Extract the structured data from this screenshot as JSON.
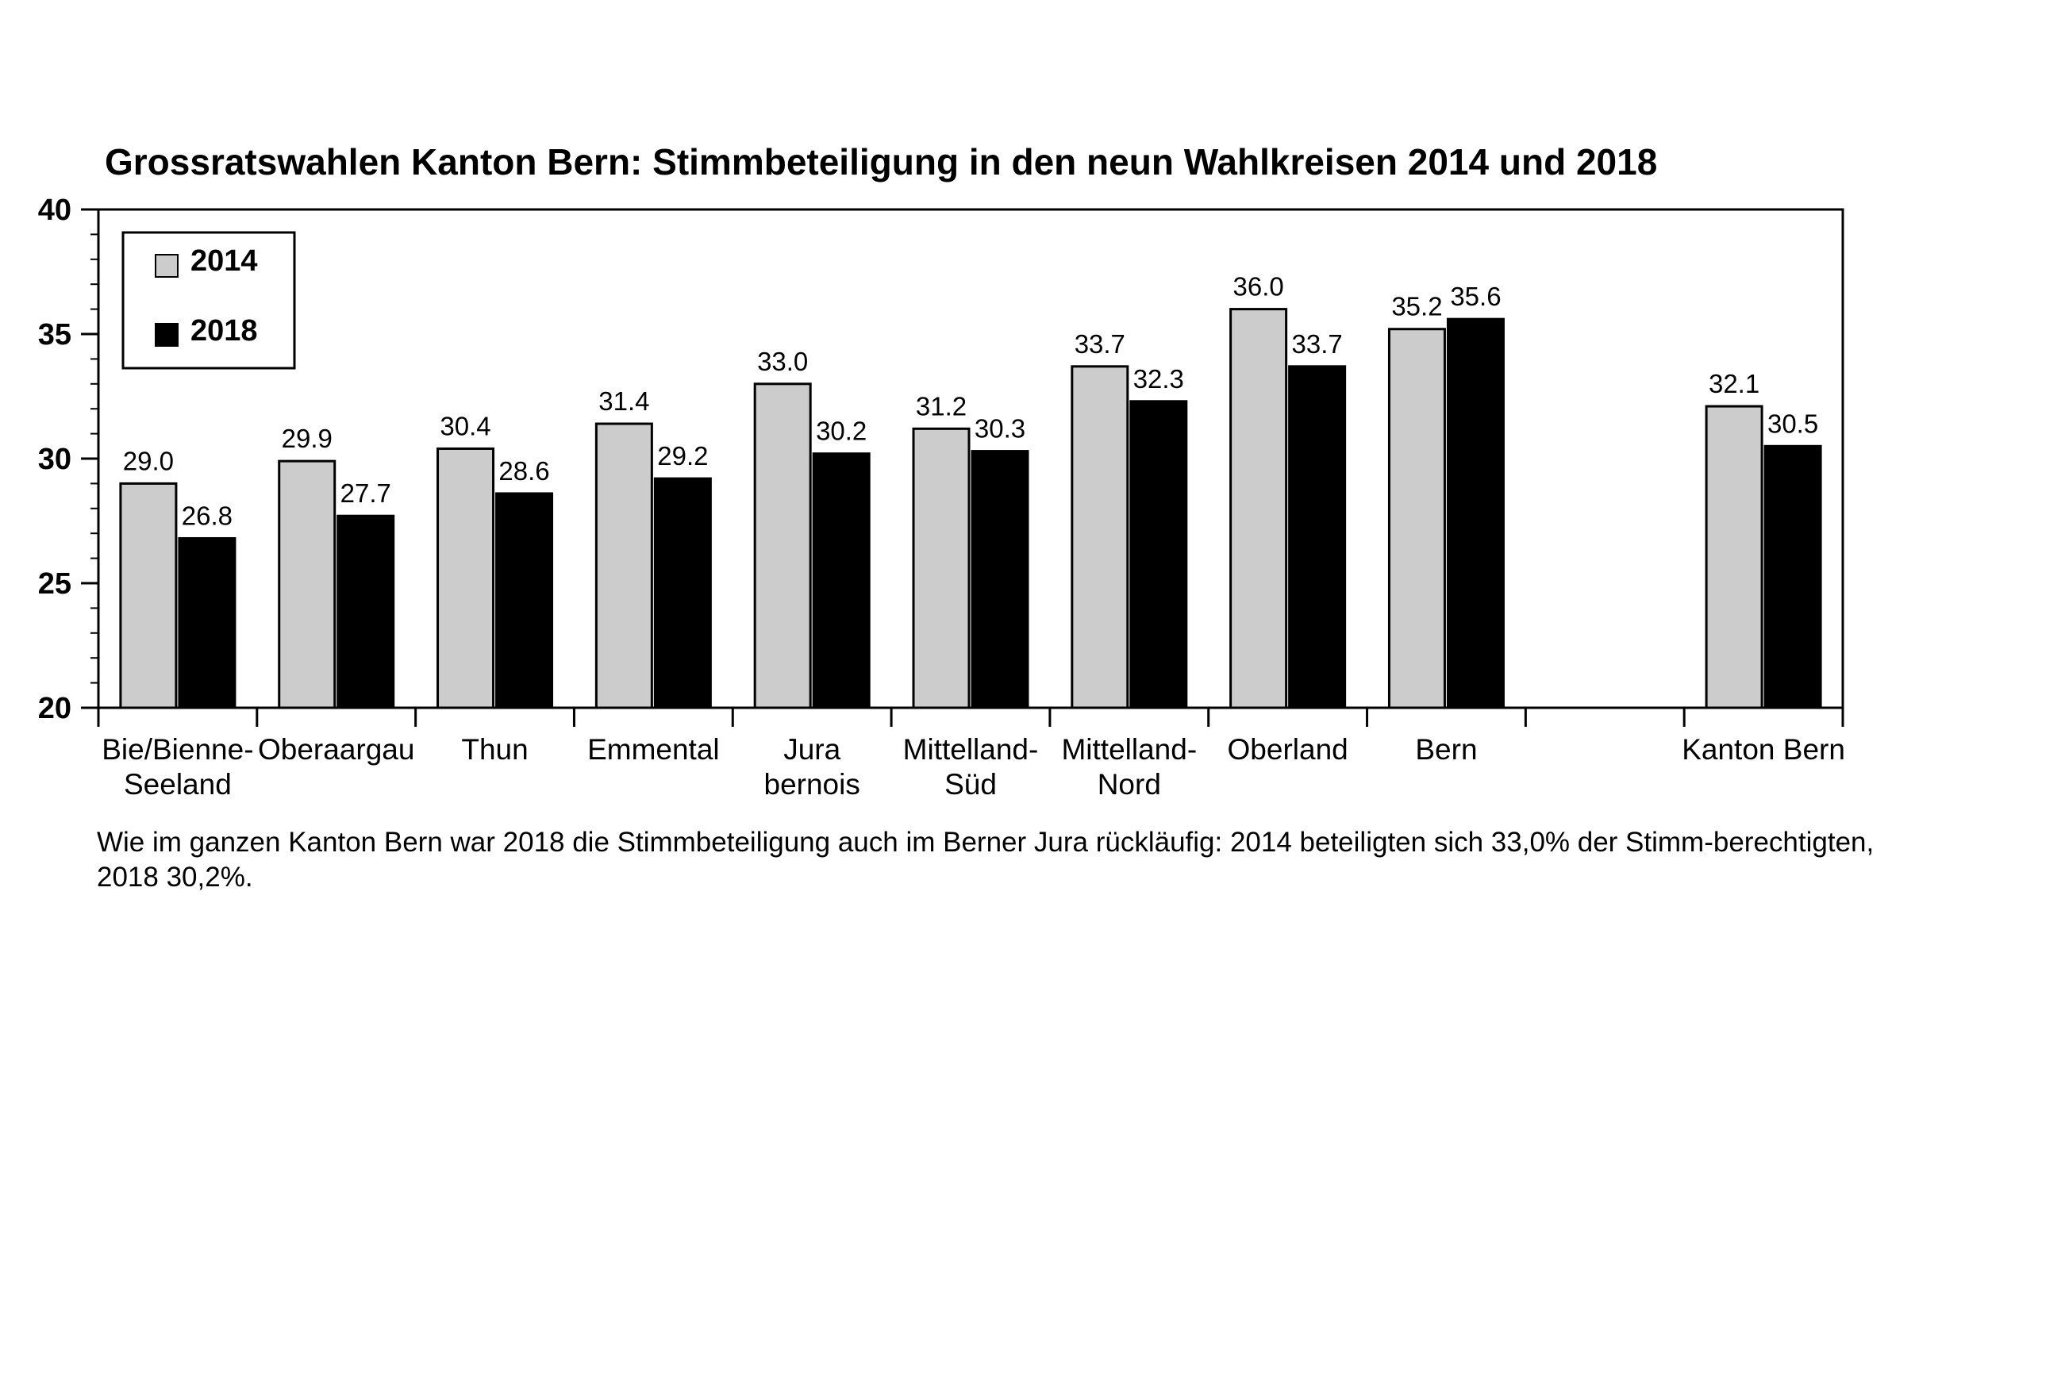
{
  "chart_data": {
    "type": "bar",
    "title": "Grossratswahlen Kanton Bern: Stimmbeteiligung in den neun Wahlkreisen 2014 und 2018",
    "xlabel": "",
    "ylabel": "",
    "ylim": [
      20,
      40
    ],
    "yticks": [
      "20",
      "25",
      "30",
      "35",
      "40"
    ],
    "grid": false,
    "legend_position": "top-left",
    "categories": [
      [
        "Bie/Bienne-",
        "Seeland"
      ],
      [
        "Oberaargau"
      ],
      [
        "Thun"
      ],
      [
        "Emmental"
      ],
      [
        "Jura",
        "bernois"
      ],
      [
        "Mittelland-",
        "Süd"
      ],
      [
        "Mittelland-",
        "Nord"
      ],
      [
        "Oberland"
      ],
      [
        "Bern"
      ],
      [],
      [
        "Kanton Bern"
      ]
    ],
    "series": [
      {
        "name": "2014",
        "color": "#cccccc",
        "values": [
          29.0,
          29.9,
          30.4,
          31.4,
          33.0,
          31.2,
          33.7,
          36.0,
          35.2,
          null,
          32.1
        ],
        "labels": [
          "29.0",
          "29.9",
          "30.4",
          "31.4",
          "33.0",
          "31.2",
          "33.7",
          "36.0",
          "35.2",
          "",
          "32.1"
        ]
      },
      {
        "name": "2018",
        "color": "#000000",
        "values": [
          26.8,
          27.7,
          28.6,
          29.2,
          30.2,
          30.3,
          32.3,
          33.7,
          35.6,
          null,
          30.5
        ],
        "labels": [
          "26.8",
          "27.7",
          "28.6",
          "29.2",
          "30.2",
          "30.3",
          "32.3",
          "33.7",
          "35.6",
          "",
          "30.5"
        ]
      }
    ]
  },
  "caption": "Wie im ganzen Kanton Bern war 2018 die Stimmbeteiligung auch im Berner Jura rückläufig: 2014 beteiligten sich 33,0% der Stimm-berechtigten, 2018 30,2%."
}
